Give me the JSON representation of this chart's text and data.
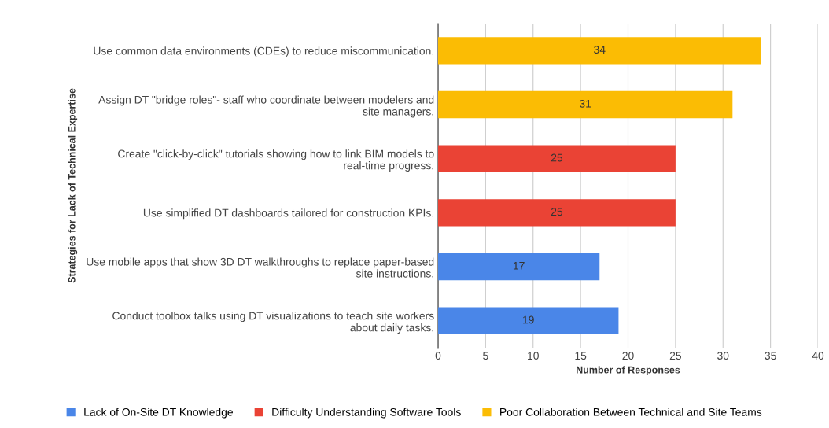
{
  "chart_data": {
    "type": "bar",
    "orientation": "horizontal",
    "ylabel": "Strategies for Lack of Technical Expertise",
    "xlabel": "Number of Responses",
    "categories": [
      "Use common data environments (CDEs) to reduce miscommunication.",
      "Assign DT \"bridge roles\"- staff who coordinate between modelers and site managers.",
      "Create \"click-by-click\" tutorials showing how to link BIM models to real-time progress.",
      "Use simplified DT dashboards tailored for construction KPIs.",
      "Use mobile apps that show 3D DT walkthroughs to replace paper-based site instructions.",
      "Conduct toolbox talks using DT visualizations to teach site workers about daily tasks."
    ],
    "series": [
      {
        "name": "Lack of On-Site DT Knowledge",
        "color": "#4a86e8",
        "values": [
          null,
          null,
          null,
          null,
          17,
          19
        ]
      },
      {
        "name": "Difficulty Understanding Software Tools",
        "color": "#ea4335",
        "values": [
          null,
          null,
          25,
          25,
          null,
          null
        ]
      },
      {
        "name": "Poor Collaboration Between Technical and Site Teams",
        "color": "#fbbc04",
        "values": [
          34,
          31,
          null,
          null,
          null,
          null
        ]
      }
    ],
    "xlim": [
      0,
      40
    ],
    "xticks": [
      0,
      5,
      10,
      15,
      20,
      25,
      30,
      35,
      40
    ],
    "grid": "x",
    "legend": "bottom",
    "data_labels": true
  }
}
